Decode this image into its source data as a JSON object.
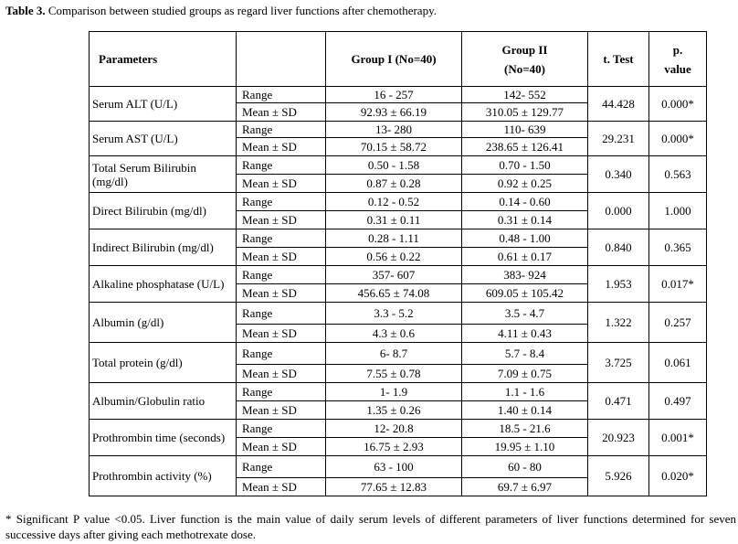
{
  "caption": {
    "label": "Table 3.",
    "text": " Comparison between studied groups as regard liver functions after chemotherapy."
  },
  "headers": {
    "parameters": "Parameters",
    "group1": "Group I (No=40)",
    "group2_line1": "Group II",
    "group2_line2": "(No=40)",
    "ttest": "t. Test",
    "pvalue_line1": "p.",
    "pvalue_line2": "value"
  },
  "rows": [
    {
      "param": "Serum ALT (U/L)",
      "range_label": "Range",
      "mean_label": "Mean ± SD",
      "g1_range": "16 - 257",
      "g1_mean": "92.93 ± 66.19",
      "g2_range": "142- 552",
      "g2_mean": "310.05 ± 129.77",
      "t": "44.428",
      "p": "0.000*"
    },
    {
      "param": "Serum AST (U/L)",
      "range_label": "Range",
      "mean_label": "Mean ± SD",
      "g1_range": "13- 280",
      "g1_mean": "70.15 ± 58.72",
      "g2_range": "110- 639",
      "g2_mean": "238.65 ± 126.41",
      "t": "29.231",
      "p": "0.000*"
    },
    {
      "param": "Total Serum Bilirubin (mg/dl)",
      "range_label": "Range",
      "mean_label": "Mean ± SD",
      "g1_range": "0.50 - 1.58",
      "g1_mean": "0.87 ± 0.28",
      "g2_range": "0.70 - 1.50",
      "g2_mean": "0.92 ± 0.25",
      "t": "0.340",
      "p": "0.563"
    },
    {
      "param": "Direct Bilirubin (mg/dl)",
      "range_label": "Range",
      "mean_label": "Mean ± SD",
      "g1_range": "0.12 - 0.52",
      "g1_mean": "0.31 ± 0.11",
      "g2_range": "0.14 - 0.60",
      "g2_mean": "0.31 ± 0.14",
      "t": "0.000",
      "p": "1.000"
    },
    {
      "param": "Indirect Bilirubin (mg/dl)",
      "range_label": "Range",
      "mean_label": "Mean ± SD",
      "g1_range": "0.28 - 1.11",
      "g1_mean": "0.56 ± 0.22",
      "g2_range": "0.48 - 1.00",
      "g2_mean": "0.61 ± 0.17",
      "t": "0.840",
      "p": "0.365"
    },
    {
      "param": "Alkaline phosphatase (U/L)",
      "range_label": "Range",
      "mean_label": "Mean ± SD",
      "g1_range": "357- 607",
      "g1_mean": "456.65 ± 74.08",
      "g2_range": "383- 924",
      "g2_mean": "609.05 ± 105.42",
      "t": "1.953",
      "p": "0.017*"
    },
    {
      "param": "Albumin (g/dl)",
      "range_label": "Range",
      "mean_label": "Mean ± SD",
      "g1_range": "3.3 - 5.2",
      "g1_mean": "4.3 ± 0.6",
      "g2_range": "3.5 - 4.7",
      "g2_mean": "4.11 ± 0.43",
      "t": "1.322",
      "p": "0.257"
    },
    {
      "param": "Total protein (g/dl)",
      "range_label": "Range",
      "mean_label": "Mean ± SD",
      "g1_range": "6- 8.7",
      "g1_mean": "7.55 ± 0.78",
      "g2_range": "5.7 - 8.4",
      "g2_mean": "7.09 ± 0.75",
      "t": "3.725",
      "p": "0.061"
    },
    {
      "param": "Albumin/Globulin ratio",
      "range_label": "Range",
      "mean_label": "Mean ± SD",
      "g1_range": "1- 1.9",
      "g1_mean": "1.35 ± 0.26",
      "g2_range": "1.1 - 1.6",
      "g2_mean": "1.40 ± 0.14",
      "t": "0.471",
      "p": "0.497"
    },
    {
      "param": "Prothrombin time (seconds)",
      "range_label": "Range",
      "mean_label": "Mean ± SD",
      "g1_range": "12- 20.8",
      "g1_mean": "16.75 ± 2.93",
      "g2_range": "18.5 - 21.6",
      "g2_mean": "19.95 ± 1.10",
      "t": "20.923",
      "p": "0.001*"
    },
    {
      "param": "Prothrombin activity (%)",
      "range_label": "Range",
      "mean_label": "Mean ± SD",
      "g1_range": "63 - 100",
      "g1_mean": "77.65 ± 12.83",
      "g2_range": "60 - 80",
      "g2_mean": "69.7 ± 6.97",
      "t": "5.926",
      "p": "0.020*"
    }
  ],
  "footnote": "* Significant P value <0.05. Liver function is the main value of daily serum levels of different parameters of liver functions determined for seven successive  days after giving each methotrexate dose."
}
